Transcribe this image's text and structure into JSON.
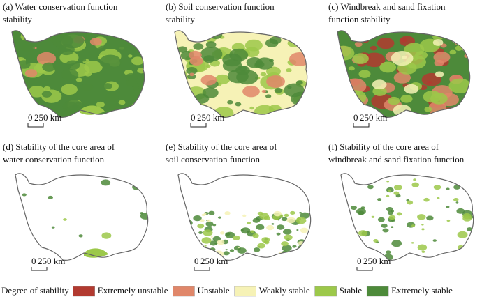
{
  "panels": [
    {
      "title": [
        "(a) Water conservation function",
        "stability"
      ],
      "scale_bar": {
        "start": "0",
        "end": "250 km"
      }
    },
    {
      "title": [
        "(b) Soil conservation function",
        "stability"
      ],
      "scale_bar": {
        "start": "0",
        "end": "250 km"
      }
    },
    {
      "title": [
        "(c) Windbreak and sand fixation",
        "function stability"
      ],
      "scale_bar": {
        "start": "0",
        "end": "250 km"
      }
    },
    {
      "title": [
        "(d) Stability of the core area of",
        "water conservation function"
      ],
      "scale_bar": {
        "start": "0",
        "end": "250 km"
      }
    },
    {
      "title": [
        "(e) Stability of the core area of",
        "soil conservation function"
      ],
      "scale_bar": {
        "start": "0",
        "end": "250 km"
      }
    },
    {
      "title": [
        "(f) Stability of the core area of",
        "windbreak and sand fixation function"
      ],
      "scale_bar": {
        "start": "0",
        "end": "250 km"
      }
    }
  ],
  "legend": {
    "title": "Degree of stability",
    "items": [
      {
        "name": "Extremely unstable",
        "color": "#b23a30"
      },
      {
        "name": "Unstable",
        "color": "#e0876a"
      },
      {
        "name": "Weakly stable",
        "color": "#f6f2b6"
      },
      {
        "name": "Stable",
        "color": "#9cc84a"
      },
      {
        "name": "Extremely stable",
        "color": "#4d8a3a"
      }
    ]
  }
}
